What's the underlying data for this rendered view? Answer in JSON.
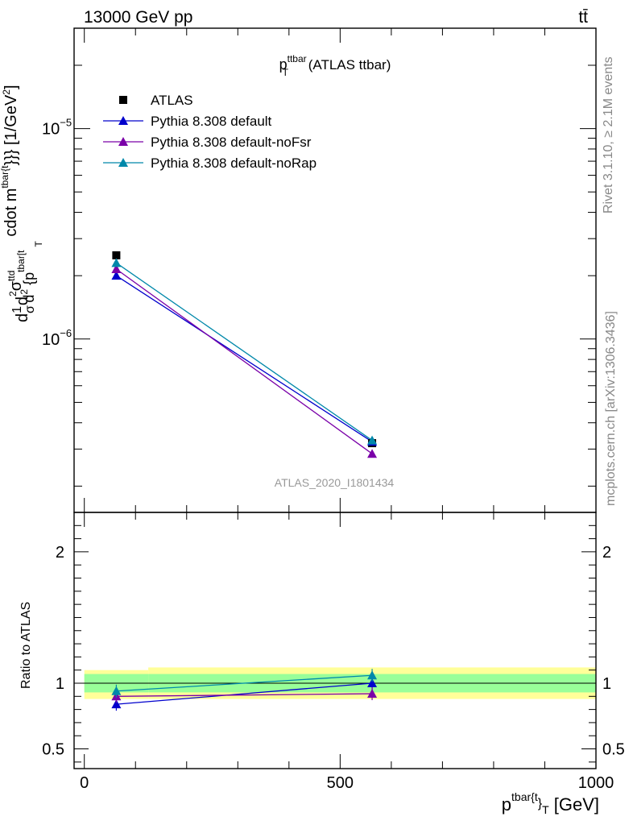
{
  "header": {
    "left": "13000 GeV pp",
    "right": "tt̄"
  },
  "side_labels": {
    "rivet": "Rivet 3.1.10, ≥ 2.1M events",
    "mcplots": "mcplots.cern.ch [arXiv:1306.3436]"
  },
  "colors": {
    "atlas": "#000000",
    "default": "#0000cc",
    "noFsr": "#7a00a8",
    "noRap": "#0088aa",
    "band_inner": "#99ff99",
    "band_outer": "#ffff99"
  },
  "chart_data": [
    {
      "type": "scatter",
      "panel": "main",
      "title": "p_T^ttbar (ATLAS ttbar)",
      "title_main": "p",
      "title_sup": "ttbar",
      "title_sub": "T",
      "title_rest": " (ATLAS ttbar)",
      "watermark": "ATLAS_2020_I1801434",
      "ylabel": "d1σdd²σ^ttd² {p^tbar[t}_T cdot m^tbar{t}}}} [1/GeV²]",
      "ylabel_parts": {
        "d": "d",
        "one": "1",
        "sigma": "σ",
        "d2": "d",
        "d2sup": "2",
        "sigma2": "σ",
        "sigma2sup": "ttd",
        "d3": "d",
        "d3sup": "2",
        "p": " {p",
        "psup": "tbar[t",
        "psub": "T",
        "cdot": "  cdot m",
        "msup": "tbar{t",
        "close": "}}} [1/GeV",
        "closesup": "2",
        "end": "]"
      },
      "yscale": "log",
      "ylim": [
        1.5e-07,
        3e-05
      ],
      "xlim": [
        -20,
        1000
      ],
      "yticks": [
        {
          "value": 1e-06,
          "label": "10",
          "exp": "−6"
        },
        {
          "value": 1e-05,
          "label": "10",
          "exp": "−5"
        }
      ],
      "legend_position": "top-left",
      "series": [
        {
          "name": "ATLAS",
          "marker": "square",
          "color": "#000000",
          "line": false,
          "x": [
            62.5,
            562.5
          ],
          "y": [
            2.5e-06,
            3.2e-07
          ]
        },
        {
          "name": "Pythia 8.308 default",
          "marker": "triangle",
          "color": "#0000cc",
          "line": true,
          "x": [
            62.5,
            562.5
          ],
          "y": [
            2e-06,
            3.25e-07
          ]
        },
        {
          "name": "Pythia 8.308 default-noFsr",
          "marker": "triangle",
          "color": "#7a00a8",
          "line": true,
          "x": [
            62.5,
            562.5
          ],
          "y": [
            2.15e-06,
            2.85e-07
          ]
        },
        {
          "name": "Pythia 8.308 default-noRap",
          "marker": "triangle",
          "color": "#0088aa",
          "line": true,
          "x": [
            62.5,
            562.5
          ],
          "y": [
            2.3e-06,
            3.3e-07
          ]
        }
      ]
    },
    {
      "type": "scatter",
      "panel": "ratio",
      "ylabel": "Ratio to ATLAS",
      "xlabel": "p^tbar{t}_T [GeV]",
      "xlabel_parts": {
        "p": "p",
        "sup": "tbar{t",
        "mid": "}",
        "sub": "T",
        "rest": " [GeV]"
      },
      "xlim": [
        -20,
        1000
      ],
      "ylim": [
        0.35,
        2.3
      ],
      "xticks": [
        {
          "value": 0,
          "label": "0"
        },
        {
          "value": 500,
          "label": "500"
        },
        {
          "value": 1000,
          "label": "1000"
        }
      ],
      "yticks": [
        {
          "value": 0.5,
          "label": "0.5"
        },
        {
          "value": 1,
          "label": "1"
        },
        {
          "value": 2,
          "label": "2"
        }
      ],
      "bands": [
        {
          "x0": 0,
          "x1": 125,
          "inner": [
            0.93,
            1.07
          ],
          "outer": [
            0.88,
            1.1
          ]
        },
        {
          "x0": 125,
          "x1": 1000,
          "inner": [
            0.93,
            1.07
          ],
          "outer": [
            0.88,
            1.12
          ]
        }
      ],
      "series": [
        {
          "name": "Pythia 8.308 default",
          "color": "#0000cc",
          "x": [
            62.5,
            562.5
          ],
          "y": [
            0.84,
            1.0
          ]
        },
        {
          "name": "Pythia 8.308 default-noFsr",
          "color": "#7a00a8",
          "x": [
            62.5,
            562.5
          ],
          "y": [
            0.9,
            0.92
          ]
        },
        {
          "name": "Pythia 8.308 default-noRap",
          "color": "#0088aa",
          "x": [
            62.5,
            562.5
          ],
          "y": [
            0.94,
            1.06
          ]
        }
      ]
    }
  ]
}
